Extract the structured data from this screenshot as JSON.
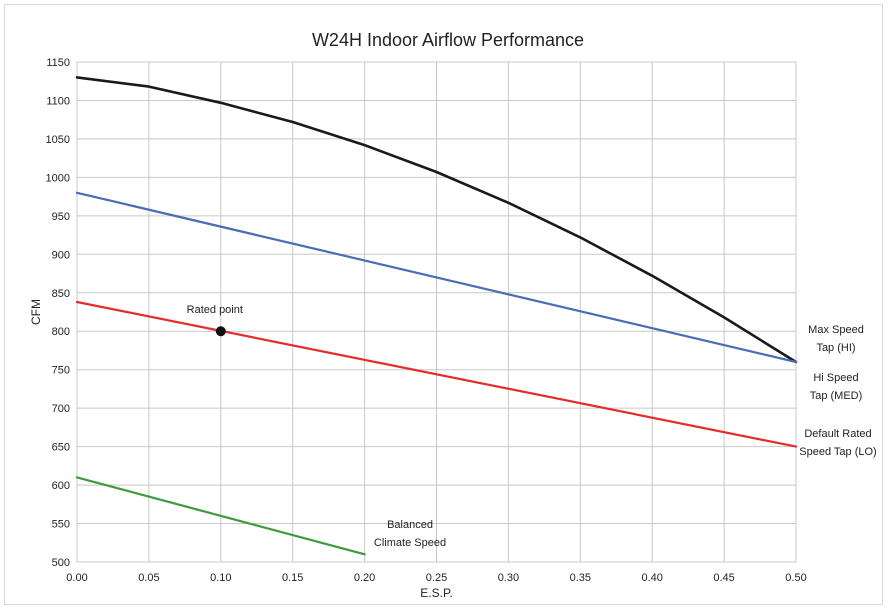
{
  "chart_data": {
    "type": "line",
    "title": "W24H   Indoor Airflow Performance",
    "xlabel": "E.S.P.",
    "ylabel": "CFM",
    "xlim": [
      0.0,
      0.5
    ],
    "ylim": [
      500,
      1150
    ],
    "x_ticks": [
      0.0,
      0.05,
      0.1,
      0.15,
      0.2,
      0.25,
      0.3,
      0.35,
      0.4,
      0.45,
      0.5
    ],
    "x_tick_labels": [
      "0.00",
      "0.05",
      "0.10",
      "0.15",
      "0.20",
      "0.25",
      "0.30",
      "0.35",
      "0.40",
      "0.45",
      "0.50"
    ],
    "y_ticks": [
      500,
      550,
      600,
      650,
      700,
      750,
      800,
      850,
      900,
      950,
      1000,
      1050,
      1100,
      1150
    ],
    "y_tick_labels": [
      "500",
      "550",
      "600",
      "650",
      "700",
      "750",
      "800",
      "850",
      "900",
      "950",
      "1000",
      "1050",
      "1100",
      "1150"
    ],
    "grid": true,
    "series": [
      {
        "key": "max",
        "color": "#1a1a1a",
        "x": [
          0.0,
          0.05,
          0.1,
          0.15,
          0.2,
          0.25,
          0.3,
          0.35,
          0.4,
          0.45,
          0.5
        ],
        "y": [
          1130,
          1118,
          1097,
          1072,
          1042,
          1007,
          967,
          922,
          872,
          818,
          760
        ]
      },
      {
        "key": "hi",
        "color": "#4a6db5",
        "x": [
          0.0,
          0.5
        ],
        "y": [
          980,
          760
        ]
      },
      {
        "key": "default",
        "color": "#e52b2b",
        "x": [
          0.0,
          0.5
        ],
        "y": [
          838,
          650
        ]
      },
      {
        "key": "balanced",
        "color": "#3e9a3e",
        "x": [
          0.0,
          0.2
        ],
        "y": [
          610,
          510
        ]
      }
    ],
    "series_labels": [
      {
        "lines": [
          "Max Speed",
          "Tap (HI)"
        ]
      },
      {
        "lines": [
          "Hi Speed",
          "Tap (MED)"
        ]
      },
      {
        "lines": [
          "Default Rated",
          "Speed Tap (LO)"
        ]
      },
      {
        "lines": [
          "Balanced",
          "Climate Speed"
        ]
      }
    ],
    "annotations": [
      {
        "text": "Rated point",
        "x": 0.1,
        "y": 800
      }
    ]
  }
}
